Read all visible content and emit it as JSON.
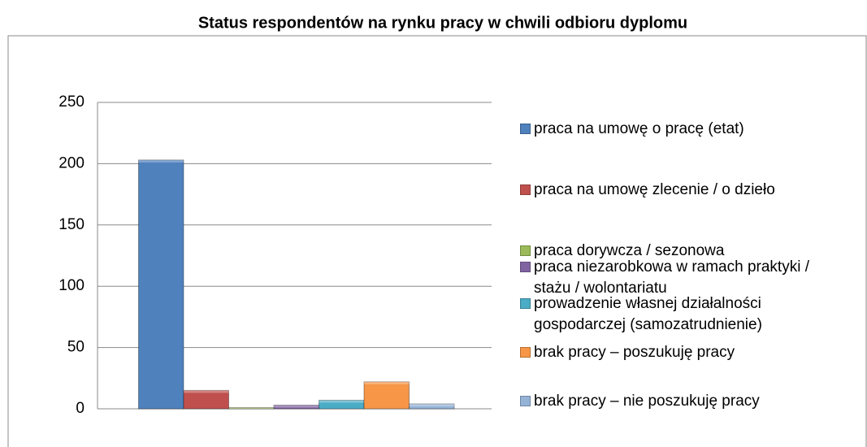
{
  "chart_data": {
    "type": "bar",
    "title": "Status respondentów na rynku pracy w chwili odbioru dyplomu",
    "categories": [
      null
    ],
    "series": [
      {
        "name": "praca na umowę o pracę (etat)",
        "color": "#4f81bd",
        "values": [
          203
        ]
      },
      {
        "name": "praca na umowę zlecenie / o dzieło",
        "color": "#c0504d",
        "values": [
          15
        ]
      },
      {
        "name": "praca dorywcza / sezonowa",
        "color": "#9bbb59",
        "values": [
          1
        ]
      },
      {
        "name": "praca niezarobkowa w ramach praktyki / stażu / wolontariatu",
        "color": "#8064a2",
        "values": [
          3
        ]
      },
      {
        "name": "prowadzenie własnej działalności gospodarczej (samozatrudnienie)",
        "color": "#4bacc6",
        "values": [
          7
        ]
      },
      {
        "name": "brak pracy – poszukuję pracy",
        "color": "#f79646",
        "values": [
          22
        ]
      },
      {
        "name": "brak pracy – nie poszukuję pracy",
        "color": "#95b3d7",
        "values": [
          4
        ]
      }
    ],
    "ylim": [
      0,
      250
    ],
    "yticks": [
      0,
      50,
      100,
      150,
      200,
      250
    ],
    "grid": true
  }
}
